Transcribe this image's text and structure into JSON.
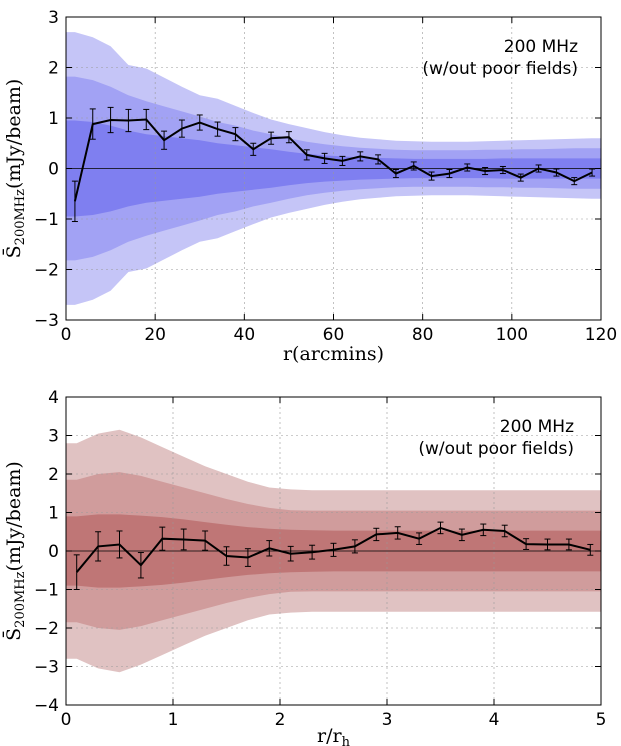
{
  "chart_data": [
    {
      "type": "line",
      "annotation_lines": [
        "200 MHz",
        "(w/out poor fields)"
      ],
      "xlabel": "r(arcmins)",
      "ylabel": "S̄200MHz(mJy/beam)",
      "ylabel_main": "S̄",
      "ylabel_sub": "200MHz",
      "ylabel_unit": "(mJy/beam)",
      "xlim": [
        0,
        120
      ],
      "ylim": [
        -3,
        3
      ],
      "xticks": [
        "0",
        "20",
        "40",
        "60",
        "80",
        "100",
        "120"
      ],
      "yticks": [
        "−3",
        "−2",
        "−1",
        "0",
        "1",
        "2",
        "3"
      ],
      "grid": true,
      "line_color": "#000000",
      "band_colors": [
        "#c5c5f7",
        "#a2a2f4",
        "#7f7ff0"
      ],
      "x": [
        2,
        6,
        10,
        14,
        18,
        22,
        26,
        30,
        34,
        38,
        42,
        46,
        50,
        54,
        58,
        62,
        66,
        70,
        74,
        78,
        82,
        86,
        90,
        94,
        98,
        102,
        106,
        110,
        114,
        118
      ],
      "mean": [
        -0.65,
        0.88,
        0.96,
        0.95,
        0.97,
        0.56,
        0.79,
        0.91,
        0.78,
        0.68,
        0.38,
        0.6,
        0.62,
        0.27,
        0.2,
        0.15,
        0.24,
        0.18,
        -0.1,
        0.05,
        -0.15,
        -0.1,
        0.02,
        -0.05,
        -0.03,
        -0.18,
        0.0,
        -0.08,
        -0.25,
        -0.08
      ],
      "error": [
        0.4,
        0.3,
        0.25,
        0.22,
        0.2,
        0.18,
        0.17,
        0.15,
        0.14,
        0.13,
        0.12,
        0.12,
        0.11,
        0.1,
        0.1,
        0.09,
        0.09,
        0.09,
        0.08,
        0.08,
        0.08,
        0.08,
        0.07,
        0.07,
        0.07,
        0.07,
        0.07,
        0.07,
        0.07,
        0.07
      ],
      "band_1sigma": [
        0.95,
        0.92,
        0.85,
        0.75,
        0.68,
        0.64,
        0.6,
        0.56,
        0.5,
        0.46,
        0.42,
        0.38,
        0.33,
        0.29,
        0.26,
        0.24,
        0.22,
        0.21,
        0.2,
        0.19,
        0.19,
        0.19,
        0.19,
        0.19,
        0.2,
        0.2,
        0.2,
        0.2,
        0.2,
        0.2
      ],
      "band_2sigma": [
        1.82,
        1.75,
        1.62,
        1.45,
        1.33,
        1.23,
        1.13,
        1.03,
        0.92,
        0.85,
        0.75,
        0.68,
        0.6,
        0.53,
        0.48,
        0.44,
        0.41,
        0.39,
        0.37,
        0.36,
        0.36,
        0.36,
        0.36,
        0.37,
        0.37,
        0.38,
        0.38,
        0.39,
        0.4,
        0.4
      ],
      "band_3sigma": [
        2.7,
        2.6,
        2.42,
        2.05,
        1.98,
        1.8,
        1.62,
        1.45,
        1.38,
        1.24,
        1.1,
        0.97,
        0.88,
        0.8,
        0.72,
        0.66,
        0.61,
        0.58,
        0.55,
        0.54,
        0.53,
        0.53,
        0.53,
        0.54,
        0.55,
        0.56,
        0.57,
        0.58,
        0.59,
        0.6
      ]
    },
    {
      "type": "line",
      "annotation_lines": [
        "200 MHz",
        "(w/out poor fields)"
      ],
      "xlabel": "r/rh",
      "xlabel_main": "r/r",
      "xlabel_sub": "h",
      "ylabel": "S̄200MHz(mJy/beam)",
      "ylabel_main": "S̄",
      "ylabel_sub": "200MHz",
      "ylabel_unit": "(mJy/beam)",
      "xlim": [
        0,
        5
      ],
      "ylim": [
        -4,
        4
      ],
      "xticks": [
        "0",
        "1",
        "2",
        "3",
        "4",
        "5"
      ],
      "yticks": [
        "−4",
        "−3",
        "−2",
        "−1",
        "0",
        "1",
        "2",
        "3",
        "4"
      ],
      "grid": true,
      "line_color": "#000000",
      "band_colors": [
        "#e0c2c2",
        "#d09c9c",
        "#bf7676"
      ],
      "x": [
        0.1,
        0.3,
        0.5,
        0.7,
        0.9,
        1.1,
        1.3,
        1.5,
        1.7,
        1.9,
        2.1,
        2.3,
        2.5,
        2.7,
        2.9,
        3.1,
        3.3,
        3.5,
        3.7,
        3.9,
        4.1,
        4.3,
        4.5,
        4.7,
        4.9
      ],
      "mean": [
        -0.55,
        0.12,
        0.17,
        -0.37,
        0.32,
        0.3,
        0.27,
        -0.13,
        -0.17,
        0.07,
        -0.07,
        -0.03,
        0.03,
        0.12,
        0.43,
        0.47,
        0.32,
        0.6,
        0.42,
        0.55,
        0.52,
        0.18,
        0.17,
        0.17,
        0.03
      ],
      "error": [
        0.45,
        0.38,
        0.35,
        0.33,
        0.3,
        0.27,
        0.25,
        0.24,
        0.23,
        0.2,
        0.19,
        0.18,
        0.17,
        0.17,
        0.16,
        0.16,
        0.15,
        0.15,
        0.15,
        0.15,
        0.15,
        0.14,
        0.14,
        0.14,
        0.14
      ],
      "band_1sigma": [
        0.9,
        0.95,
        0.95,
        0.92,
        0.88,
        0.82,
        0.75,
        0.68,
        0.62,
        0.58,
        0.55,
        0.54,
        0.53,
        0.53,
        0.53,
        0.53,
        0.53,
        0.53,
        0.53,
        0.53,
        0.53,
        0.53,
        0.53,
        0.53,
        0.53
      ],
      "band_2sigma": [
        1.85,
        2.0,
        2.05,
        1.95,
        1.8,
        1.65,
        1.5,
        1.35,
        1.22,
        1.12,
        1.06,
        1.05,
        1.05,
        1.05,
        1.05,
        1.05,
        1.05,
        1.05,
        1.05,
        1.05,
        1.05,
        1.05,
        1.05,
        1.05,
        1.05
      ],
      "band_3sigma": [
        2.8,
        3.05,
        3.15,
        2.95,
        2.7,
        2.45,
        2.2,
        2.0,
        1.8,
        1.65,
        1.6,
        1.58,
        1.58,
        1.58,
        1.58,
        1.58,
        1.58,
        1.58,
        1.58,
        1.58,
        1.58,
        1.58,
        1.58,
        1.58,
        1.58
      ]
    }
  ]
}
